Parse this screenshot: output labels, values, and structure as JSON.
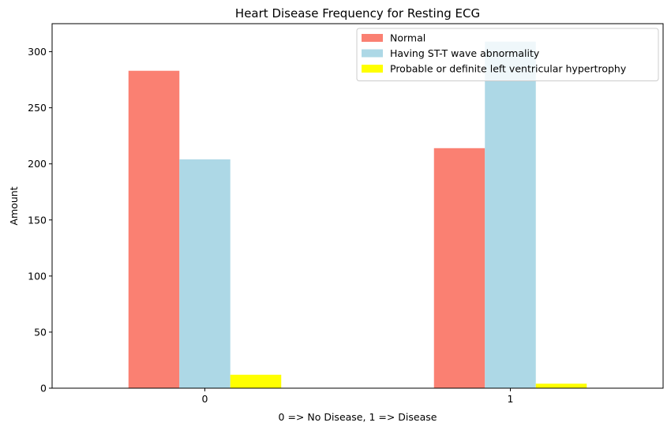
{
  "chart_data": {
    "type": "bar",
    "title": "Heart Disease Frequency for Resting ECG",
    "xlabel": "0 => No Disease, 1 => Disease",
    "ylabel": "Amount",
    "categories": [
      "0",
      "1"
    ],
    "ylim": [
      0,
      325
    ],
    "yticks": [
      0,
      50,
      100,
      150,
      200,
      250,
      300
    ],
    "grid": false,
    "legend_position": "top-right",
    "series": [
      {
        "name": "Normal",
        "values": [
          283,
          214
        ],
        "color": "#fa8072"
      },
      {
        "name": "Having ST-T wave abnormality",
        "values": [
          204,
          309
        ],
        "color": "#add8e6"
      },
      {
        "name": "Probable or definite left ventricular hypertrophy",
        "values": [
          12,
          4
        ],
        "color": "#ffff00"
      }
    ]
  }
}
